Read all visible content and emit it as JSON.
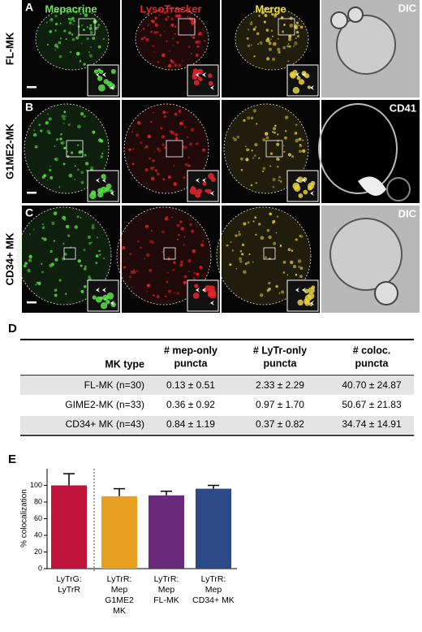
{
  "figure": {
    "columns": [
      "Mepacrine",
      "LysoTracker",
      "Merge"
    ],
    "panels": [
      {
        "letter": "A",
        "row_label": "FL-MK",
        "right_label": "DIC"
      },
      {
        "letter": "B",
        "row_label": "G1ME2-MK",
        "right_label": "CD41"
      },
      {
        "letter": "C",
        "row_label": "CD34+ MK",
        "right_label": "DIC"
      }
    ]
  },
  "table": {
    "letter": "D",
    "headers": [
      [
        "MK type"
      ],
      [
        "# mep-only",
        "puncta"
      ],
      [
        "# LyTr-only",
        "puncta"
      ],
      [
        "# coloc.",
        "puncta"
      ]
    ],
    "rows": [
      [
        "FL-MK (n=30)",
        "0.13 ± 0.51",
        "2.33 ± 2.29",
        "40.70 ± 24.87"
      ],
      [
        "GIME2-MK (n=33)",
        "0.36 ± 0.92",
        "0.97 ± 1.70",
        "50.67 ± 21.83"
      ],
      [
        "CD34+ MK (n=43)",
        "0.84 ± 1.19",
        "0.37 ± 0.82",
        "34.74 ± 14.91"
      ]
    ]
  },
  "chart_data": {
    "letter": "E",
    "type": "bar",
    "ylabel": "% colocalization",
    "categories": [
      [
        "LyTrG:",
        "LyTrR"
      ],
      [
        "LyTrR:",
        "Mep",
        "G1ME2",
        "MK"
      ],
      [
        "LyTrR:",
        "Mep",
        "FL-MK"
      ],
      [
        "LyTrR:",
        "Mep",
        "CD34+ MK"
      ]
    ],
    "values": [
      100,
      87,
      88,
      96
    ],
    "errors": [
      14,
      9,
      5,
      4
    ],
    "colors": [
      "#c0143c",
      "#e8a020",
      "#6a2a7a",
      "#2c4a86"
    ],
    "ylim": [
      0,
      120
    ],
    "yticks": [
      0,
      20,
      40,
      60,
      80,
      100
    ]
  }
}
